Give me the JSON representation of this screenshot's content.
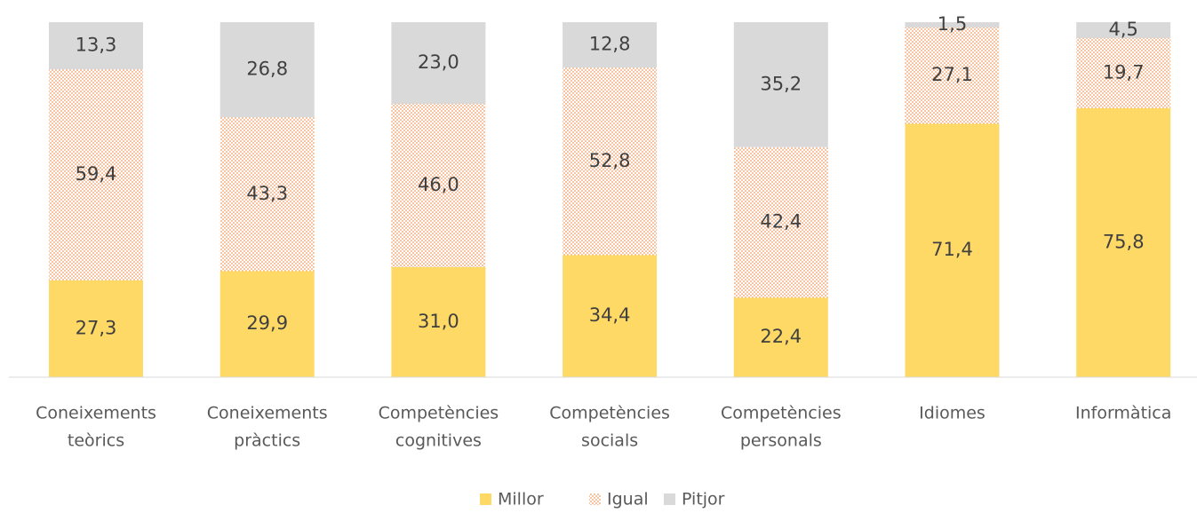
{
  "chart_data": {
    "type": "stacked_bar",
    "categories": [
      [
        "Coneixements",
        "teòrics"
      ],
      [
        "Coneixements",
        "pràctics"
      ],
      [
        "Competències",
        "cognitives"
      ],
      [
        "Competències",
        "socials"
      ],
      [
        "Competències",
        "personals"
      ],
      [
        "Idiomes"
      ],
      [
        "Informàtica"
      ]
    ],
    "ylim": [
      0,
      100
    ],
    "legend": "bottom",
    "series": [
      {
        "name": "Millor",
        "color": "#ffd966",
        "values": [
          27.3,
          29.9,
          31.0,
          34.4,
          22.4,
          71.4,
          75.8
        ],
        "value_labels": [
          "27,3",
          "29,9",
          "31,0",
          "34,4",
          "22,4",
          "71,4",
          "75,8"
        ]
      },
      {
        "name": "Igual",
        "color": "#ed7d31",
        "pattern": "dotted",
        "values": [
          59.4,
          43.3,
          46.0,
          52.8,
          42.4,
          27.1,
          19.7
        ],
        "value_labels": [
          "59,4",
          "43,3",
          "46,0",
          "52,8",
          "42,4",
          "27,1",
          "19,7"
        ]
      },
      {
        "name": "Pitjor",
        "color": "#d9d9d9",
        "values": [
          13.3,
          26.8,
          23.0,
          12.8,
          35.2,
          1.5,
          4.5
        ],
        "value_labels": [
          "13,3",
          "26,8",
          "23,0",
          "12,8",
          "35,2",
          "1,5",
          "4,5"
        ]
      }
    ]
  }
}
